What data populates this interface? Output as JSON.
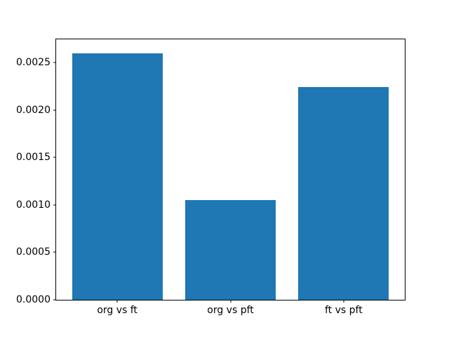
{
  "chart_data": {
    "type": "bar",
    "title": "",
    "xlabel": "",
    "ylabel": "",
    "categories": [
      "org vs ft",
      "org vs pft",
      "ft vs pft"
    ],
    "values": [
      0.0026,
      0.00105,
      0.00224
    ],
    "bar_color": "#1f77b4",
    "yticks": [
      "0.0000",
      "0.0005",
      "0.0010",
      "0.0015",
      "0.0020",
      "0.0025"
    ],
    "ytick_values": [
      0.0,
      0.0005,
      0.001,
      0.0015,
      0.002,
      0.0025
    ],
    "ylim": [
      0,
      0.002745
    ],
    "xlim": [
      -0.54,
      2.54
    ],
    "bar_width": 0.8,
    "grid": false,
    "legend": "none",
    "background_color": "#ffffff",
    "spine_color": "#000000"
  }
}
